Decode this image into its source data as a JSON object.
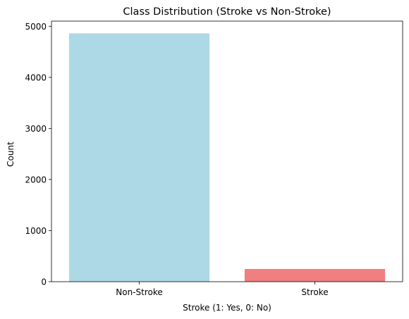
{
  "chart_data": {
    "type": "bar",
    "title": "Class Distribution (Stroke vs Non-Stroke)",
    "xlabel": "Stroke (1: Yes, 0: No)",
    "ylabel": "Count",
    "categories": [
      "Non-Stroke",
      "Stroke"
    ],
    "values": [
      4861,
      249
    ],
    "colors": [
      "#add8e6",
      "#f08080"
    ],
    "ylim": [
      0,
      5100
    ],
    "yticks": [
      0,
      1000,
      2000,
      3000,
      4000,
      5000
    ],
    "grid": false,
    "legend": "none"
  }
}
